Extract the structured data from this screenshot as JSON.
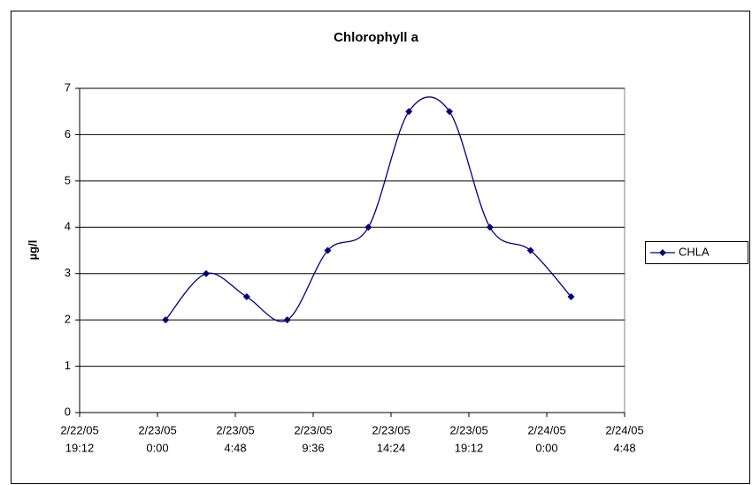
{
  "chart_data": {
    "type": "line",
    "title": "Chlorophyll a",
    "y_label": "µg/l",
    "x": [
      "2005-02-23T00:30",
      "2005-02-23T03:00",
      "2005-02-23T05:30",
      "2005-02-23T08:00",
      "2005-02-23T10:30",
      "2005-02-23T13:00",
      "2005-02-23T15:30",
      "2005-02-23T18:00",
      "2005-02-23T20:30",
      "2005-02-23T23:00",
      "2005-02-24T01:30"
    ],
    "series": [
      {
        "name": "CHLA",
        "color": "#000080",
        "values": [
          2,
          3,
          2.5,
          2,
          3.5,
          4,
          6.5,
          6.5,
          4,
          3.5,
          2.5
        ]
      }
    ],
    "xlim": [
      "2005-02-22T19:12",
      "2005-02-24T04:48"
    ],
    "xticks": [
      {
        "value": "2005-02-22T19:12",
        "label": [
          "2/22/05",
          "19:12"
        ]
      },
      {
        "value": "2005-02-23T00:00",
        "label": [
          "2/23/05",
          "0:00"
        ]
      },
      {
        "value": "2005-02-23T04:48",
        "label": [
          "2/23/05",
          "4:48"
        ]
      },
      {
        "value": "2005-02-23T09:36",
        "label": [
          "2/23/05",
          "9:36"
        ]
      },
      {
        "value": "2005-02-23T14:24",
        "label": [
          "2/23/05",
          "14:24"
        ]
      },
      {
        "value": "2005-02-23T19:12",
        "label": [
          "2/23/05",
          "19:12"
        ]
      },
      {
        "value": "2005-02-24T00:00",
        "label": [
          "2/24/05",
          "0:00"
        ]
      },
      {
        "value": "2005-02-24T04:48",
        "label": [
          "2/24/05",
          "4:48"
        ]
      }
    ],
    "ylim": [
      0,
      7
    ],
    "yticks": [
      0,
      1,
      2,
      3,
      4,
      5,
      6,
      7
    ],
    "grid": true,
    "smooth": true,
    "legend": "right"
  }
}
